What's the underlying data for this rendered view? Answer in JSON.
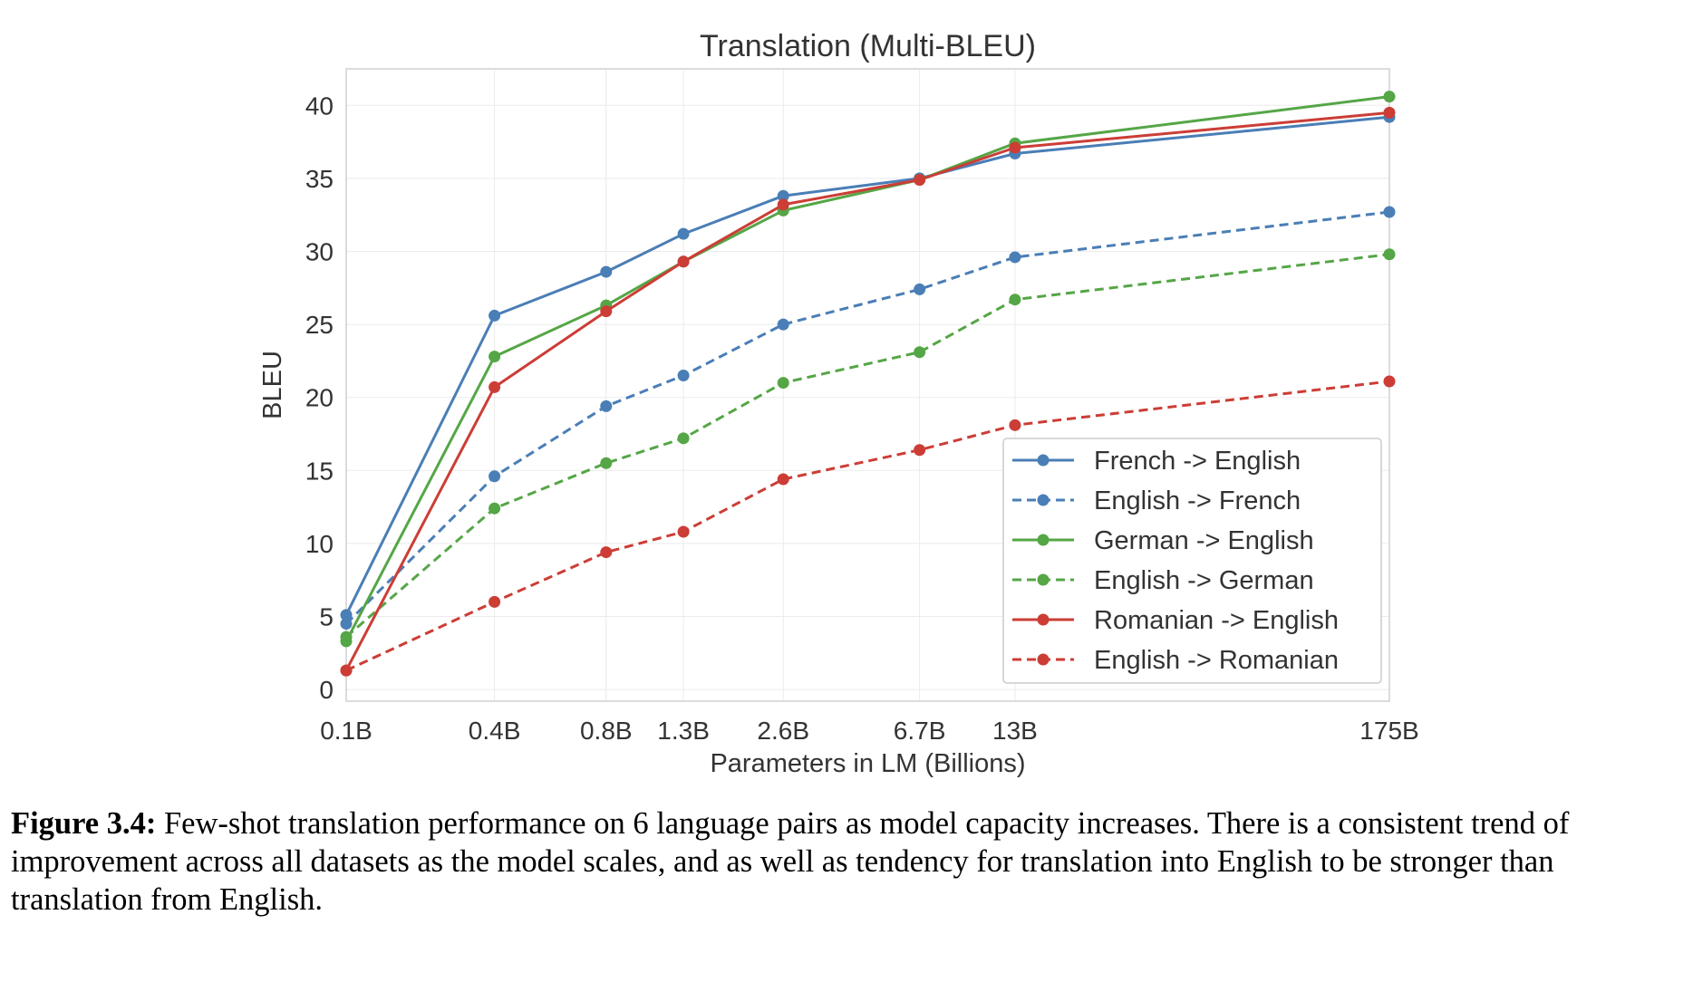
{
  "chart_data": {
    "type": "line",
    "title": "Translation (Multi-BLEU)",
    "xlabel": "Parameters in LM (Billions)",
    "ylabel": "BLEU",
    "x_scale": "log",
    "x_ticks": [
      {
        "value": 0.125,
        "label": "0.1B"
      },
      {
        "value": 0.35,
        "label": "0.4B"
      },
      {
        "value": 0.76,
        "label": "0.8B"
      },
      {
        "value": 1.3,
        "label": "1.3B"
      },
      {
        "value": 2.6,
        "label": "2.6B"
      },
      {
        "value": 6.7,
        "label": "6.7B"
      },
      {
        "value": 13,
        "label": "13B"
      },
      {
        "value": 175,
        "label": "175B"
      }
    ],
    "x": [
      0.125,
      0.35,
      0.76,
      1.3,
      2.6,
      6.7,
      13,
      175
    ],
    "ylim": [
      -0.8,
      42.5
    ],
    "y_ticks": [
      0,
      5,
      10,
      15,
      20,
      25,
      30,
      35,
      40
    ],
    "grid": true,
    "legend_position": "lower-right",
    "series": [
      {
        "name": "French -> English",
        "color": "#4a7eb6",
        "dashed": false,
        "values": [
          5.1,
          25.6,
          28.6,
          31.2,
          33.8,
          35.0,
          36.7,
          39.2
        ]
      },
      {
        "name": "English -> French",
        "color": "#4a7eb6",
        "dashed": true,
        "values": [
          4.5,
          14.6,
          19.4,
          21.5,
          25.0,
          27.4,
          29.6,
          32.7
        ]
      },
      {
        "name": "German -> English",
        "color": "#55a646",
        "dashed": false,
        "values": [
          3.3,
          22.8,
          26.3,
          29.3,
          32.8,
          34.9,
          37.4,
          40.6
        ]
      },
      {
        "name": "English -> German",
        "color": "#55a646",
        "dashed": true,
        "values": [
          3.6,
          12.4,
          15.5,
          17.2,
          21.0,
          23.1,
          26.7,
          29.8
        ]
      },
      {
        "name": "Romanian -> English",
        "color": "#cc3d36",
        "dashed": false,
        "values": [
          1.3,
          20.7,
          25.9,
          29.3,
          33.2,
          34.9,
          37.1,
          39.5
        ]
      },
      {
        "name": "English -> Romanian",
        "color": "#cc3d36",
        "dashed": true,
        "values": [
          1.3,
          6.0,
          9.4,
          10.8,
          14.4,
          16.4,
          18.1,
          21.1
        ]
      }
    ]
  },
  "caption": {
    "label": "Figure 3.4:",
    "text": " Few-shot translation performance on 6 language pairs as model capacity increases. There is a consistent trend of improvement across all datasets as the model scales, and as well as tendency for translation into English to be stronger than translation from English."
  }
}
